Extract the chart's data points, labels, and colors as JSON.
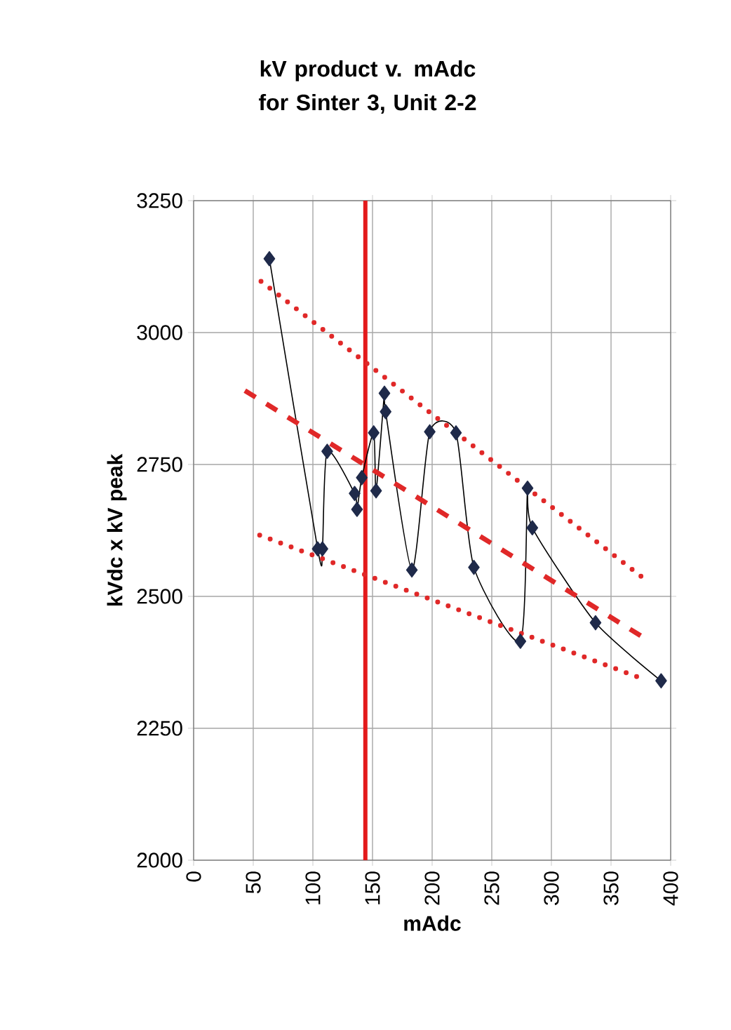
{
  "chart_data": {
    "type": "line",
    "title": "kV product v. mAdc for Sinter 3, Unit 2-2",
    "xlabel": "mAdc",
    "ylabel": "kVdc x kV peak",
    "xlim": [
      0,
      400
    ],
    "xticks": [
      0,
      50,
      100,
      150,
      200,
      250,
      300,
      350,
      400
    ],
    "ylim": [
      2000,
      3250
    ],
    "yticks": [
      2000,
      2250,
      2500,
      2750,
      3000,
      3250
    ],
    "grid": true,
    "series": [
      {
        "color": "#1f2a4a",
        "marker": "diamond",
        "line_style": "solid",
        "x": [
          63.5,
          104,
          108,
          112,
          135,
          137,
          141,
          151,
          153,
          160,
          161,
          183,
          198,
          220,
          235,
          274,
          280,
          284,
          337,
          392
        ],
        "values": [
          3140,
          2590,
          2590,
          2775,
          2695,
          2665,
          2725,
          2810,
          2700,
          2885,
          2850,
          2550,
          2812,
          2810,
          2555,
          2415,
          2705,
          2630,
          2450,
          2340
        ]
      },
      {
        "color": "#e02828",
        "marker": "none",
        "line_style": "dashed",
        "x": [
          43,
          378
        ],
        "values": [
          2890,
          2421
        ]
      },
      {
        "color": "#e02828",
        "marker": "none",
        "line_style": "dotted",
        "x": [
          56.5,
          381.5
        ],
        "values": [
          3097,
          2527
        ]
      },
      {
        "color": "#e02828",
        "marker": "none",
        "line_style": "dotted",
        "x": [
          55.4,
          373.8
        ],
        "values": [
          2616,
          2346
        ]
      }
    ],
    "ref_lines": [
      {
        "axis": "x",
        "value": 144,
        "color": "#e31a1c"
      }
    ]
  }
}
